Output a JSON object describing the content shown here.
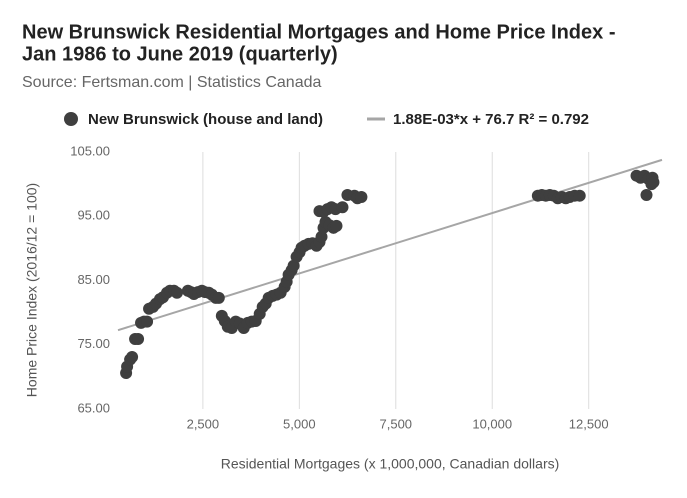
{
  "chart_data": {
    "type": "scatter",
    "title_lines": [
      "New Brunswick Residential Mortgages and Home Price Index -",
      "Jan 1986 to June 2019 (quarterly)"
    ],
    "subtitle": "Source: Fertsman.com | Statistics Canada",
    "x_label": "Residential Mortgages (x 1,000,000, Canadian dollars)",
    "y_label": "Home Price Index (2016/12 = 100)",
    "xlim": [
      300,
      14400
    ],
    "ylim": [
      65,
      105
    ],
    "xticks": [
      {
        "value": 2500,
        "label": "2,500"
      },
      {
        "value": 5000,
        "label": "5,000"
      },
      {
        "value": 7500,
        "label": "7,500"
      },
      {
        "value": 10000,
        "label": "10,000"
      },
      {
        "value": 12500,
        "label": "12,500"
      }
    ],
    "yticks": [
      {
        "value": 65,
        "label": "65.00"
      },
      {
        "value": 75,
        "label": "75.00"
      },
      {
        "value": 85,
        "label": "85.00"
      },
      {
        "value": 95,
        "label": "95.00"
      },
      {
        "value": 105,
        "label": "105.00"
      }
    ],
    "grid": true,
    "series": [
      {
        "name": "New Brunswick (house and land)",
        "color": "#3f3f3f",
        "x": [
          510,
          536,
          614,
          665,
          743,
          820,
          897,
          975,
          1053,
          1105,
          1208,
          1286,
          1389,
          1466,
          1570,
          1647,
          1751,
          1828,
          2112,
          2190,
          2267,
          2371,
          2474,
          2552,
          2655,
          2733,
          2836,
          2913,
          2991,
          3068,
          3146,
          3249,
          3352,
          3456,
          3559,
          3663,
          3766,
          3869,
          3973,
          4050,
          4128,
          4205,
          4309,
          4412,
          4515,
          4619,
          4671,
          4722,
          4800,
          4852,
          4929,
          5006,
          5058,
          5136,
          5239,
          5342,
          5446,
          5523,
          5575,
          5627,
          5678,
          5782,
          5885,
          5963,
          5523,
          5627,
          5730,
          5833,
          5937,
          6118,
          6247,
          6428,
          6506,
          6609,
          11182,
          11285,
          11389,
          11492,
          11596,
          11699,
          11802,
          11906,
          12009,
          12138,
          12267,
          13740,
          13843,
          13946,
          13998,
          14049,
          14127,
          14153,
          14178
        ],
        "values": [
          70.6,
          71.6,
          72.7,
          73.1,
          75.9,
          75.9,
          78.4,
          78.6,
          78.6,
          80.6,
          80.9,
          81.4,
          82.1,
          82.4,
          83.1,
          83.4,
          83.4,
          83.1,
          83.4,
          83.2,
          82.9,
          83.2,
          83.4,
          83.2,
          83.1,
          82.8,
          82.3,
          82.3,
          79.5,
          78.7,
          77.8,
          77.6,
          78.6,
          78.3,
          77.6,
          78.4,
          78.6,
          78.7,
          79.8,
          80.9,
          81.4,
          82.3,
          82.6,
          82.8,
          83.1,
          84.0,
          84.8,
          85.9,
          86.6,
          87.3,
          88.7,
          89.4,
          90.1,
          90.4,
          90.7,
          90.8,
          90.4,
          91.0,
          91.8,
          93.2,
          94.1,
          93.6,
          93.2,
          93.5,
          95.8,
          95.7,
          96.1,
          96.4,
          96.1,
          96.4,
          98.3,
          98.2,
          97.8,
          98.0,
          98.2,
          98.3,
          98.2,
          98.3,
          98.2,
          97.8,
          98.0,
          97.8,
          98.0,
          98.2,
          98.2,
          101.3,
          101.0,
          101.3,
          98.3,
          100.8,
          100.0,
          101.0,
          100.3
        ]
      }
    ],
    "trendline": {
      "name": "1.88E-03*x + 76.7 R² = 0.792",
      "color": "#a6a6a6",
      "slope": 0.00188,
      "intercept": 76.7
    }
  }
}
